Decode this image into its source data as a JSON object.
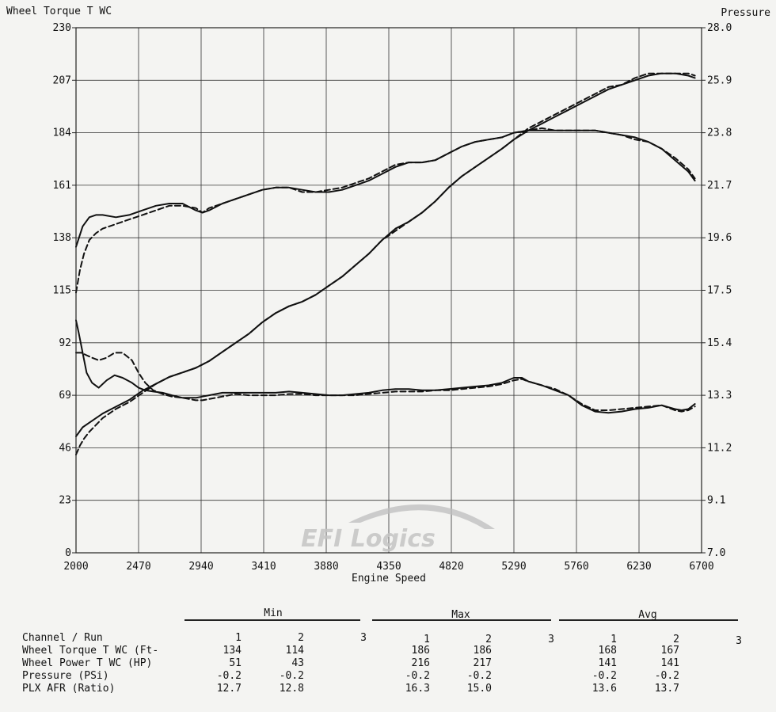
{
  "chart_data": {
    "type": "line",
    "title": "",
    "left_axis_label": "Wheel Torque T WC",
    "right_axis_label": "Pressure",
    "xlabel": "Engine Speed",
    "x_ticks": [
      "2000",
      "2470",
      "2940",
      "3410",
      "3880",
      "4350",
      "4820",
      "5290",
      "5760",
      "6230",
      "6700"
    ],
    "left_ticks": [
      "0",
      "23",
      "46",
      "69",
      "92",
      "115",
      "138",
      "161",
      "184",
      "207",
      "230"
    ],
    "right_ticks": [
      "7.0",
      "9.1",
      "11.2",
      "13.3",
      "15.4",
      "17.5",
      "19.6",
      "21.7",
      "23.8",
      "25.9",
      "28.0"
    ],
    "xlim": [
      2000,
      6700
    ],
    "ylim": [
      0,
      230
    ],
    "grid": true,
    "watermark": "EFI Logics",
    "series": [
      {
        "name": "Wheel Torque T WC (Ft-",
        "run": 1,
        "style": "solid",
        "x": [
          2000,
          2050,
          2100,
          2150,
          2200,
          2300,
          2400,
          2500,
          2600,
          2700,
          2800,
          2900,
          2950,
          3000,
          3100,
          3200,
          3300,
          3400,
          3500,
          3600,
          3700,
          3800,
          3900,
          4000,
          4100,
          4200,
          4300,
          4400,
          4500,
          4600,
          4700,
          4800,
          4900,
          5000,
          5100,
          5200,
          5290,
          5400,
          5500,
          5600,
          5700,
          5800,
          5900,
          6000,
          6100,
          6200,
          6300,
          6400,
          6500,
          6600,
          6650
        ],
        "y": [
          134,
          143,
          147,
          148,
          148,
          147,
          148,
          150,
          152,
          153,
          153,
          150,
          149,
          150,
          153,
          155,
          157,
          159,
          160,
          160,
          159,
          158,
          158,
          159,
          161,
          163,
          166,
          169,
          171,
          171,
          172,
          175,
          178,
          180,
          181,
          182,
          184,
          185,
          185,
          185,
          185,
          185,
          185,
          184,
          183,
          182,
          180,
          177,
          172,
          167,
          163
        ]
      },
      {
        "name": "Wheel Torque T WC (Ft-",
        "run": 2,
        "style": "dashed",
        "x": [
          2000,
          2030,
          2060,
          2100,
          2150,
          2200,
          2300,
          2400,
          2500,
          2600,
          2700,
          2800,
          2900,
          2950,
          3000,
          3100,
          3200,
          3300,
          3400,
          3500,
          3600,
          3700,
          3800,
          3900,
          4000,
          4100,
          4200,
          4300,
          4400,
          4500,
          4600,
          4700,
          4800,
          4900,
          5000,
          5100,
          5200,
          5290,
          5400,
          5500,
          5600,
          5700,
          5800,
          5900,
          6000,
          6100,
          6200,
          6300,
          6400,
          6500,
          6600,
          6650
        ],
        "y": [
          114,
          124,
          131,
          137,
          140,
          142,
          144,
          146,
          148,
          150,
          152,
          152,
          151,
          149,
          151,
          153,
          155,
          157,
          159,
          160,
          160,
          158,
          158,
          159,
          160,
          162,
          164,
          167,
          170,
          171,
          171,
          172,
          175,
          178,
          180,
          181,
          182,
          184,
          185,
          186,
          185,
          185,
          185,
          185,
          184,
          183,
          181,
          180,
          177,
          173,
          168,
          164
        ]
      },
      {
        "name": "Wheel Power T WC (HP)",
        "run": 1,
        "style": "solid",
        "x": [
          2000,
          2050,
          2100,
          2200,
          2300,
          2400,
          2500,
          2600,
          2700,
          2800,
          2900,
          3000,
          3100,
          3200,
          3300,
          3400,
          3500,
          3600,
          3700,
          3800,
          3900,
          4000,
          4100,
          4200,
          4300,
          4400,
          4500,
          4600,
          4700,
          4800,
          4900,
          5000,
          5100,
          5200,
          5290,
          5400,
          5500,
          5600,
          5700,
          5800,
          5900,
          6000,
          6100,
          6200,
          6300,
          6400,
          6500,
          6600,
          6650
        ],
        "y": [
          51,
          55,
          57,
          61,
          64,
          67,
          71,
          74,
          77,
          79,
          81,
          84,
          88,
          92,
          96,
          101,
          105,
          108,
          110,
          113,
          117,
          121,
          126,
          131,
          137,
          142,
          145,
          149,
          154,
          160,
          165,
          169,
          173,
          177,
          181,
          185,
          188,
          191,
          194,
          197,
          200,
          203,
          205,
          207,
          209,
          210,
          210,
          209,
          208
        ]
      },
      {
        "name": "Wheel Power T WC (HP)",
        "run": 2,
        "style": "dashed",
        "x": [
          2000,
          2030,
          2060,
          2100,
          2150,
          2200,
          2300,
          2400,
          2500,
          2600,
          2700,
          2800,
          2900,
          3000,
          3100,
          3200,
          3300,
          3400,
          3500,
          3600,
          3700,
          3800,
          3900,
          4000,
          4100,
          4200,
          4300,
          4400,
          4500,
          4600,
          4700,
          4800,
          4900,
          5000,
          5100,
          5200,
          5290,
          5400,
          5500,
          5600,
          5700,
          5800,
          5900,
          6000,
          6100,
          6200,
          6300,
          6400,
          6500,
          6600,
          6650
        ],
        "y": [
          43,
          47,
          50,
          53,
          56,
          59,
          63,
          66,
          70,
          74,
          77,
          79,
          81,
          84,
          88,
          92,
          96,
          101,
          105,
          108,
          110,
          113,
          117,
          121,
          126,
          131,
          137,
          141,
          145,
          149,
          154,
          160,
          165,
          169,
          173,
          177,
          181,
          186,
          189,
          192,
          195,
          198,
          201,
          204,
          205,
          208,
          210,
          210,
          210,
          210,
          209
        ]
      },
      {
        "name": "PLX AFR (Ratio)",
        "run": 1,
        "style": "solid",
        "x": [
          2000,
          2020,
          2050,
          2080,
          2120,
          2170,
          2230,
          2290,
          2350,
          2420,
          2470,
          2520,
          2580,
          2650,
          2720,
          2800,
          2900,
          2950,
          3000,
          3100,
          3200,
          3300,
          3400,
          3500,
          3600,
          3700,
          3800,
          3900,
          4000,
          4100,
          4200,
          4300,
          4400,
          4500,
          4600,
          4700,
          4800,
          4900,
          5000,
          5100,
          5200,
          5290,
          5350,
          5400,
          5500,
          5600,
          5700,
          5800,
          5900,
          6000,
          6100,
          6200,
          6300,
          6400,
          6500,
          6550,
          6600,
          6650
        ],
        "y": [
          16.3,
          15.8,
          15.0,
          14.2,
          13.8,
          13.6,
          13.9,
          14.1,
          14.0,
          13.8,
          13.6,
          13.5,
          13.45,
          13.4,
          13.3,
          13.2,
          13.2,
          13.25,
          13.3,
          13.4,
          13.4,
          13.4,
          13.4,
          13.4,
          13.45,
          13.4,
          13.35,
          13.3,
          13.3,
          13.35,
          13.4,
          13.5,
          13.55,
          13.55,
          13.5,
          13.5,
          13.55,
          13.6,
          13.65,
          13.7,
          13.8,
          14.0,
          14.0,
          13.85,
          13.7,
          13.5,
          13.3,
          12.9,
          12.65,
          12.6,
          12.65,
          12.75,
          12.8,
          12.9,
          12.75,
          12.7,
          12.75,
          12.95
        ]
      },
      {
        "name": "PLX AFR (Ratio)",
        "run": 2,
        "style": "dashed",
        "x": [
          2000,
          2040,
          2080,
          2120,
          2170,
          2230,
          2290,
          2350,
          2420,
          2470,
          2520,
          2580,
          2650,
          2720,
          2800,
          2900,
          2950,
          3000,
          3100,
          3200,
          3300,
          3400,
          3500,
          3600,
          3700,
          3800,
          3900,
          4000,
          4100,
          4200,
          4300,
          4400,
          4500,
          4600,
          4700,
          4800,
          4900,
          5000,
          5100,
          5200,
          5290,
          5350,
          5400,
          5500,
          5600,
          5700,
          5800,
          5900,
          6000,
          6100,
          6200,
          6300,
          6400,
          6500,
          6550,
          6600,
          6650
        ],
        "y": [
          15.0,
          15.0,
          14.9,
          14.8,
          14.7,
          14.8,
          15.0,
          15.0,
          14.7,
          14.2,
          13.8,
          13.5,
          13.35,
          13.25,
          13.2,
          13.1,
          13.1,
          13.15,
          13.25,
          13.35,
          13.3,
          13.3,
          13.3,
          13.35,
          13.35,
          13.3,
          13.3,
          13.3,
          13.3,
          13.35,
          13.4,
          13.45,
          13.45,
          13.45,
          13.5,
          13.5,
          13.55,
          13.6,
          13.65,
          13.75,
          13.9,
          13.95,
          13.85,
          13.7,
          13.55,
          13.3,
          12.95,
          12.7,
          12.7,
          12.75,
          12.8,
          12.85,
          12.9,
          12.7,
          12.65,
          12.7,
          12.85
        ]
      }
    ]
  },
  "summary": {
    "groups": [
      "Min",
      "Max",
      "Avg"
    ],
    "channel_header": "Channel / Run",
    "run_labels": [
      "1",
      "2",
      "3"
    ],
    "rows": [
      {
        "label": "Wheel Torque T WC (Ft-",
        "values": [
          "134",
          "114",
          "186",
          "186",
          "168",
          "167"
        ]
      },
      {
        "label": "Wheel Power T WC (HP)",
        "values": [
          "51",
          "43",
          "216",
          "217",
          "141",
          "141"
        ]
      },
      {
        "label": "Pressure (PSi)",
        "values": [
          "-0.2",
          "-0.2",
          "-0.2",
          "-0.2",
          "-0.2",
          "-0.2"
        ]
      },
      {
        "label": "PLX AFR (Ratio)",
        "values": [
          "12.7",
          "12.8",
          "16.3",
          "15.0",
          "13.6",
          "13.7"
        ]
      }
    ]
  }
}
